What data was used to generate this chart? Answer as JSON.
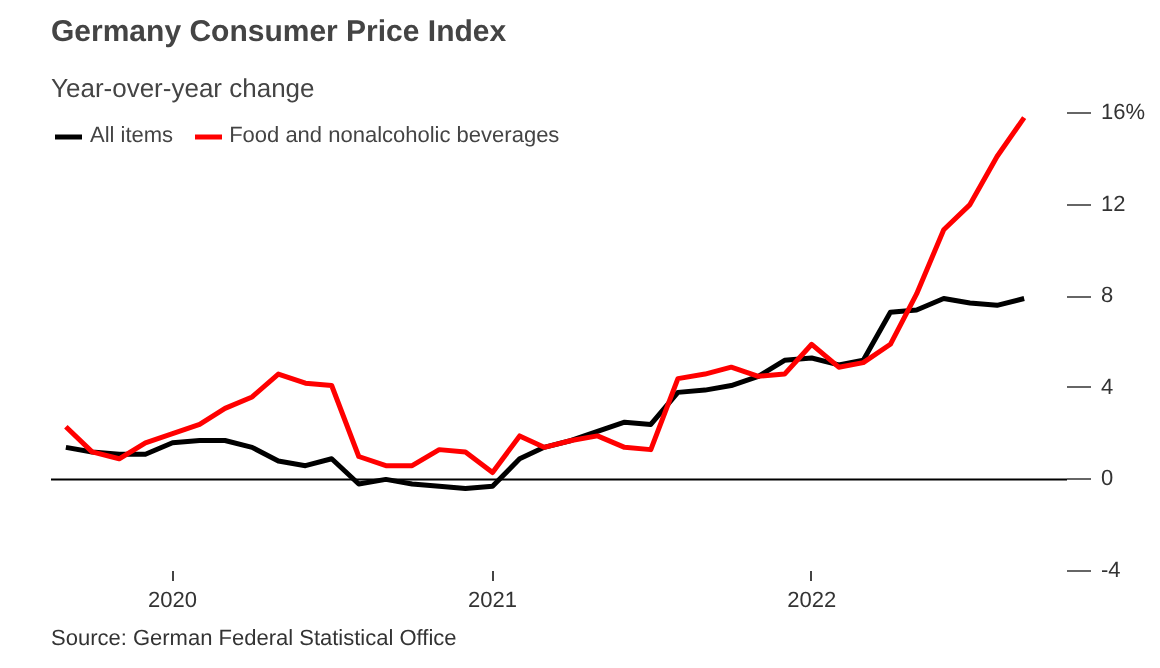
{
  "chart_data": {
    "type": "line",
    "title": "Germany Consumer Price Index",
    "subtitle": "Year-over-year change",
    "x": [
      "2019-09",
      "2019-10",
      "2019-11",
      "2019-12",
      "2020-01",
      "2020-02",
      "2020-03",
      "2020-04",
      "2020-05",
      "2020-06",
      "2020-07",
      "2020-08",
      "2020-09",
      "2020-10",
      "2020-11",
      "2020-12",
      "2021-01",
      "2021-02",
      "2021-03",
      "2021-04",
      "2021-05",
      "2021-06",
      "2021-07",
      "2021-08",
      "2021-09",
      "2021-10",
      "2021-11",
      "2021-12",
      "2022-01",
      "2022-02",
      "2022-03",
      "2022-04",
      "2022-05",
      "2022-06",
      "2022-07",
      "2022-08",
      "2022-09"
    ],
    "series": [
      {
        "name": "All items",
        "color": "#000000",
        "values": [
          1.4,
          1.2,
          1.1,
          1.1,
          1.6,
          1.7,
          1.7,
          1.4,
          0.8,
          0.6,
          0.9,
          -0.2,
          0,
          -0.2,
          -0.3,
          -0.4,
          -0.3,
          0.9,
          1.4,
          1.7,
          2.1,
          2.5,
          2.4,
          3.8,
          3.9,
          4.1,
          4.5,
          5.2,
          5.3,
          5,
          5.2,
          7.3,
          7.4,
          7.9,
          7.7,
          7.6,
          7.9
        ]
      },
      {
        "name": "Food and nonalcoholic beverages",
        "color": "#ff0000",
        "values": [
          2.3,
          1.2,
          0.9,
          1.6,
          2.0,
          2.4,
          3.1,
          3.6,
          4.6,
          4.2,
          4.1,
          1.0,
          0.6,
          0.6,
          1.3,
          1.2,
          0.3,
          1.9,
          1.4,
          1.7,
          1.9,
          1.4,
          1.3,
          4.4,
          4.6,
          4.9,
          4.5,
          4.6,
          5.9,
          4.9,
          5.1,
          5.9,
          8.1,
          10.9,
          12.0,
          14.1,
          15.8
        ]
      }
    ],
    "xlim": [
      "2019-08-15",
      "2022-10-20"
    ],
    "xticks": [
      {
        "value": "2020-01",
        "label": "2020"
      },
      {
        "value": "2021-01",
        "label": "2021"
      },
      {
        "value": "2022-01",
        "label": "2022"
      }
    ],
    "ylim": [
      -4,
      16
    ],
    "yticks": [
      -4,
      0,
      4,
      8,
      12,
      {
        "value": 16,
        "label": "16%"
      }
    ],
    "ref_lines": [
      {
        "axis": "y",
        "value": 0,
        "color": "#000000"
      }
    ],
    "grid": false,
    "legend": "top left",
    "line_style": "solid",
    "annotations": [
      "Source: German Federal Statistical Office"
    ]
  }
}
